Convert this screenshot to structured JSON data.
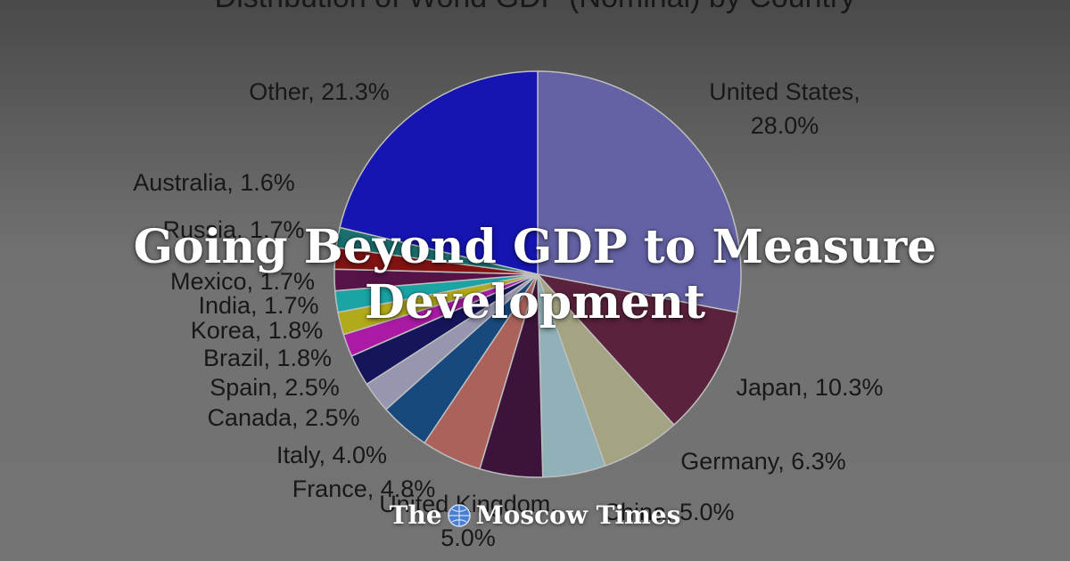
{
  "article": {
    "headline_line1": "Going Beyond GDP to Measure",
    "headline_line2": "Development"
  },
  "brand": {
    "name_part1": "The",
    "name_part2": "Moscow Times",
    "logo_icon": "globe-icon"
  },
  "chart_data": {
    "type": "pie",
    "title": "Distribution of World GDP (Nominal) by Country",
    "unit": "%",
    "slices": [
      {
        "label": "United States",
        "value": 28.0,
        "text": "United States, 28.0%",
        "color": "#7b78c8"
      },
      {
        "label": "Japan",
        "value": 10.3,
        "text": "Japan, 10.3%",
        "color": "#6e2a4a"
      },
      {
        "label": "Germany",
        "value": 6.3,
        "text": "Germany, 6.3%",
        "color": "#c8c8a0"
      },
      {
        "label": "China",
        "value": 5.0,
        "text": "China, 5.0%",
        "color": "#b0d8e0"
      },
      {
        "label": "United Kingdom",
        "value": 5.0,
        "text": "United Kingdom, 5.0%",
        "color": "#4a1848"
      },
      {
        "label": "France",
        "value": 4.8,
        "text": "France, 4.8%",
        "color": "#d07870"
      },
      {
        "label": "Italy",
        "value": 4.0,
        "text": "Italy, 4.0%",
        "color": "#1e5a9a"
      },
      {
        "label": "Canada",
        "value": 2.5,
        "text": "Canada, 2.5%",
        "color": "#b8b8d8"
      },
      {
        "label": "Spain",
        "value": 2.5,
        "text": "Spain, 2.5%",
        "color": "#1a1a70"
      },
      {
        "label": "Brazil",
        "value": 1.8,
        "text": "Brazil, 1.8%",
        "color": "#d020c8"
      },
      {
        "label": "Korea",
        "value": 1.8,
        "text": "Korea, 1.8%",
        "color": "#d8d020"
      },
      {
        "label": "India",
        "value": 1.7,
        "text": "India, 1.7%",
        "color": "#20c8c8"
      },
      {
        "label": "Mexico",
        "value": 1.7,
        "text": "Mexico, 1.7%",
        "color": "#6a1858"
      },
      {
        "label": "Russia",
        "value": 1.7,
        "text": "Russia, 1.7%",
        "color": "#a01818"
      },
      {
        "label": "Australia",
        "value": 1.6,
        "text": "Australia, 1.6%",
        "color": "#208888"
      },
      {
        "label": "Other",
        "value": 21.3,
        "text": "Other, 21.3%",
        "color": "#1a1ad8"
      }
    ]
  }
}
